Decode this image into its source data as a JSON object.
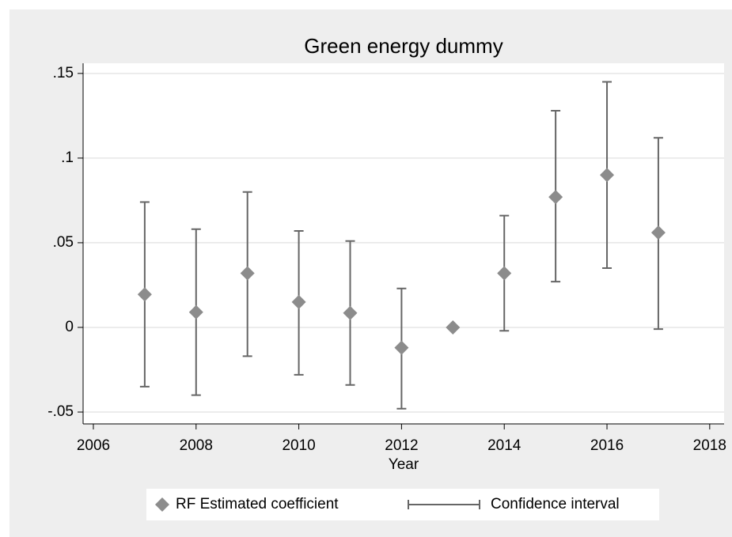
{
  "chart_data": {
    "type": "errorbar",
    "title": "Green energy dummy",
    "x_label": "Year",
    "x": [
      2007,
      2008,
      2009,
      2010,
      2011,
      2012,
      2013,
      2014,
      2015,
      2016,
      2017
    ],
    "series": [
      {
        "name": "RF Estimated coefficient",
        "color": "#8c8c8c",
        "values": [
          0.0195,
          0.009,
          0.032,
          0.015,
          0.0085,
          -0.012,
          0,
          0.032,
          0.077,
          0.09,
          0.056
        ]
      },
      {
        "name": "Confidence interval",
        "color": "#666666",
        "lower": [
          -0.035,
          -0.04,
          -0.017,
          -0.028,
          -0.034,
          -0.048,
          0,
          -0.002,
          0.027,
          0.035,
          -0.001
        ],
        "upper": [
          0.074,
          0.058,
          0.08,
          0.057,
          0.051,
          0.023,
          0,
          0.066,
          0.128,
          0.145,
          0.112
        ]
      }
    ],
    "xlim": [
      2005.8,
      2018.28
    ],
    "xticks": [
      2006,
      2008,
      2010,
      2012,
      2014,
      2016,
      2018
    ],
    "ylim": [
      -0.057,
      0.156
    ],
    "yticks": [
      {
        "value": 0.15,
        "label": ".15"
      },
      {
        "value": 0.1,
        "label": ".1"
      },
      {
        "value": 0.05,
        "label": ".05"
      },
      0,
      {
        "value": -0.05,
        "label": "-.05"
      }
    ],
    "grid": true
  }
}
